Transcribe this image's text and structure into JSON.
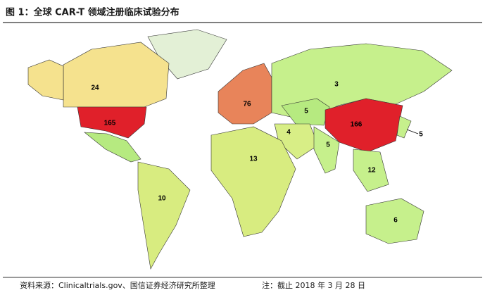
{
  "header": {
    "title": "图 1：全球 CAR-T 领域注册临床试验分布"
  },
  "map": {
    "regions": [
      {
        "value": 24,
        "color": "#f5e28e"
      },
      {
        "value": 165,
        "color": "#e0202a"
      },
      {
        "value": 76,
        "color": "#e8845a"
      },
      {
        "value": 3,
        "color": "#c6f08c"
      },
      {
        "value": 5,
        "color": "#b6ea80"
      },
      {
        "value": 166,
        "color": "#e0202a"
      },
      {
        "value": 5,
        "color": "#c6f08c"
      },
      {
        "value": 4,
        "color": "#d8ee86"
      },
      {
        "value": 5,
        "color": "#c6f08c"
      },
      {
        "value": 13,
        "color": "#d8ec80"
      },
      {
        "value": 10,
        "color": "#d8ec80"
      },
      {
        "value": 12,
        "color": "#c6f08c"
      },
      {
        "value": 6,
        "color": "#c6f08c"
      }
    ]
  },
  "footer": {
    "source": "资料来源：Clinicaltrials.gov、国信证券经济研究所整理",
    "note": "注：截止 2018 年 3 月 28 日"
  }
}
